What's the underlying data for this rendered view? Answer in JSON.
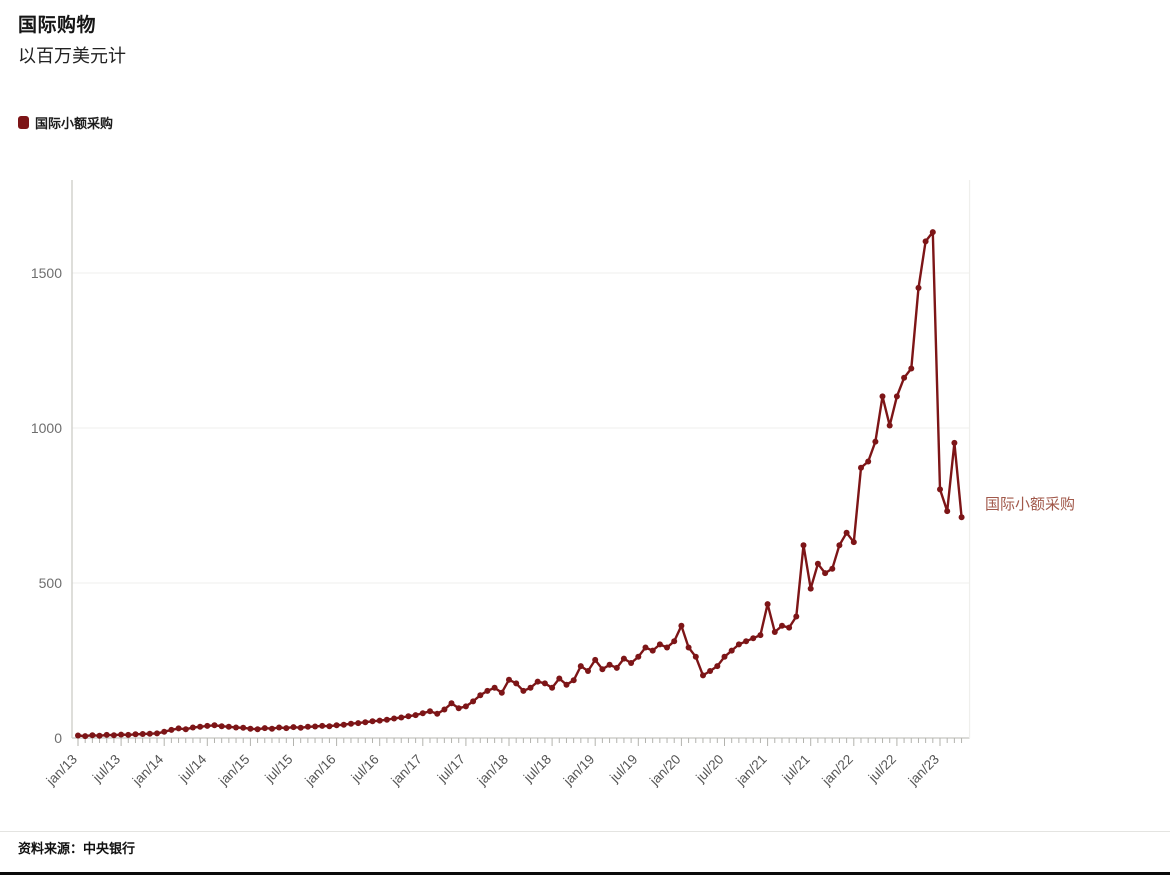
{
  "header": {
    "title": "国际购物",
    "subtitle": "以百万美元计"
  },
  "legend": {
    "label": "国际小额采购"
  },
  "annotation": {
    "label": "国际小额采购"
  },
  "source": "资料来源：中央银行",
  "colors": {
    "line": "#7d1517",
    "marker": "#7d1517",
    "annotation_text": "#a1584a",
    "axis": "#cfcfcb",
    "tick": "#b3b3ae",
    "grid": "#efefec",
    "axis_label": "#6e6e6e"
  },
  "chart_data": {
    "type": "line",
    "title": "国际购物",
    "subtitle": "以百万美元计",
    "series_name": "国际小额采购",
    "unit": "百万美元",
    "x_start": "jan/13",
    "frequency": "monthly",
    "x_tick_interval": 6,
    "x_tick_labels": [
      "jan/13",
      "jul/13",
      "jan/14",
      "jul/14",
      "jan/15",
      "jul/15",
      "jan/16",
      "jul/16",
      "jan/17",
      "jul/17",
      "jan/18",
      "jul/18",
      "jan/19",
      "jul/19",
      "jan/20",
      "jul/20",
      "jan/21",
      "jul/21",
      "jan/22",
      "jul/22",
      "jan/23"
    ],
    "y_ticks": [
      0,
      500,
      1000,
      1500
    ],
    "ylim": [
      0,
      1700
    ],
    "grid": "minimal",
    "legend_position": "top-left",
    "values": [
      8,
      6,
      9,
      7,
      10,
      9,
      11,
      10,
      12,
      13,
      14,
      15,
      20,
      26,
      31,
      28,
      34,
      36,
      39,
      41,
      38,
      36,
      34,
      33,
      30,
      28,
      32,
      30,
      34,
      32,
      35,
      33,
      36,
      37,
      39,
      38,
      41,
      43,
      46,
      48,
      51,
      54,
      56,
      59,
      63,
      66,
      70,
      74,
      80,
      86,
      78,
      92,
      112,
      96,
      102,
      118,
      138,
      152,
      162,
      146,
      188,
      176,
      152,
      162,
      182,
      176,
      162,
      192,
      172,
      186,
      232,
      216,
      252,
      222,
      236,
      226,
      256,
      242,
      262,
      292,
      282,
      302,
      292,
      312,
      362,
      292,
      262,
      202,
      216,
      232,
      262,
      282,
      302,
      312,
      322,
      332,
      432,
      342,
      362,
      356,
      392,
      622,
      482,
      562,
      532,
      546,
      622,
      662,
      632,
      872,
      892,
      956,
      1102,
      1008,
      1102,
      1162,
      1192,
      1452,
      1602,
      1632,
      802,
      732,
      952,
      712
    ]
  }
}
